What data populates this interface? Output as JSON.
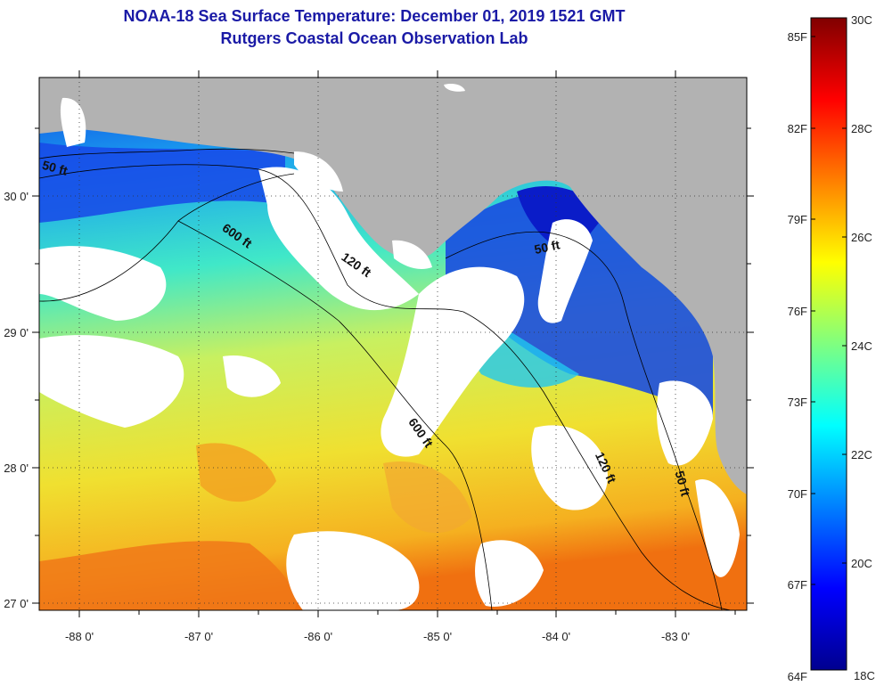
{
  "header": {
    "title": "NOAA-18 Sea Surface Temperature:  December 01, 2019 1521 GMT",
    "subtitle": "Rutgers Coastal Ocean Observation Lab"
  },
  "map": {
    "lon_range": [
      -88.33,
      -82.31
    ],
    "lat_range": [
      26.97,
      30.88
    ],
    "lon_ticks": [
      "-88 0'",
      "-87 0'",
      "-86 0'",
      "-85 0'",
      "-84 0'",
      "-83 0'"
    ],
    "lat_ticks": [
      "27 0'",
      "28 0'",
      "29 0'",
      "30 0'"
    ],
    "contours": [
      {
        "label": "600 ft",
        "count": 2
      },
      {
        "label": "120 ft",
        "count": 2
      },
      {
        "label": "50 ft",
        "count": 2
      },
      {
        "label": "50 ft",
        "count": 1,
        "note_id": "west"
      }
    ],
    "colors": {
      "land": "#b2b2b2",
      "cloud": "#ffffff",
      "border": "#000000"
    }
  },
  "colorbar": {
    "fahrenheit_labels": [
      "85F",
      "82F",
      "79F",
      "76F",
      "73F",
      "70F",
      "67F",
      "64F"
    ],
    "celsius_labels": [
      "30C",
      "28C",
      "26C",
      "24C",
      "22C",
      "20C",
      "18C"
    ],
    "range_c": [
      18,
      30
    ],
    "colormap": "jet"
  }
}
